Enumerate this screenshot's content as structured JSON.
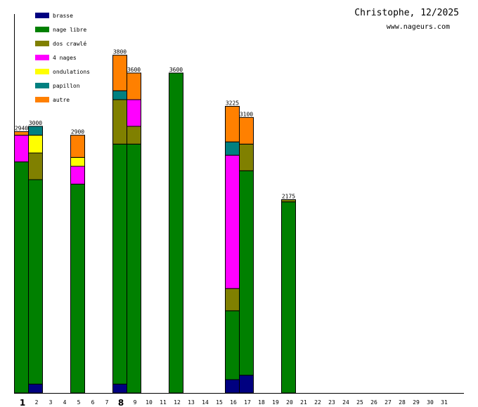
{
  "chart_data": {
    "type": "bar",
    "stacked": true,
    "title": "Christophe, 12/2025",
    "subtitle": "www.nageurs.com",
    "xlabel": "",
    "ylabel": "",
    "ylim": [
      0,
      4000
    ],
    "grid": false,
    "legend_position": "top-left",
    "categories": [
      "1",
      "2",
      "3",
      "4",
      "5",
      "6",
      "7",
      "8",
      "9",
      "10",
      "11",
      "12",
      "13",
      "14",
      "15",
      "16",
      "17",
      "18",
      "19",
      "20",
      "21",
      "22",
      "23",
      "24",
      "25",
      "26",
      "27",
      "28",
      "29",
      "30",
      "31"
    ],
    "bold_categories": [
      "1",
      "8"
    ],
    "series": [
      {
        "name": "brasse",
        "color": "#000080",
        "values": [
          0,
          100,
          0,
          0,
          0,
          0,
          0,
          100,
          0,
          0,
          0,
          0,
          0,
          0,
          0,
          150,
          200,
          0,
          0,
          0,
          0,
          0,
          0,
          0,
          0,
          0,
          0,
          0,
          0,
          0,
          0
        ]
      },
      {
        "name": "nage libre",
        "color": "#008000",
        "values": [
          2600,
          2300,
          0,
          0,
          2350,
          0,
          0,
          2700,
          2800,
          0,
          0,
          3600,
          0,
          0,
          0,
          775,
          2300,
          0,
          0,
          2150,
          0,
          0,
          0,
          0,
          0,
          0,
          0,
          0,
          0,
          0,
          0
        ]
      },
      {
        "name": "dos crawlé",
        "color": "#808000",
        "values": [
          0,
          300,
          0,
          0,
          0,
          0,
          0,
          500,
          200,
          0,
          0,
          0,
          0,
          0,
          0,
          250,
          300,
          0,
          0,
          25,
          0,
          0,
          0,
          0,
          0,
          0,
          0,
          0,
          0,
          0,
          0
        ]
      },
      {
        "name": "4 nages",
        "color": "#ff00ff",
        "values": [
          300,
          0,
          0,
          0,
          200,
          0,
          0,
          0,
          300,
          0,
          0,
          0,
          0,
          0,
          0,
          1500,
          0,
          0,
          0,
          0,
          0,
          0,
          0,
          0,
          0,
          0,
          0,
          0,
          0,
          0,
          0
        ]
      },
      {
        "name": "ondulations",
        "color": "#ffff00",
        "values": [
          0,
          200,
          0,
          0,
          100,
          0,
          0,
          0,
          0,
          0,
          0,
          0,
          0,
          0,
          0,
          0,
          0,
          0,
          0,
          0,
          0,
          0,
          0,
          0,
          0,
          0,
          0,
          0,
          0,
          0,
          0
        ]
      },
      {
        "name": "papillon",
        "color": "#008080",
        "values": [
          0,
          100,
          0,
          0,
          0,
          0,
          0,
          100,
          0,
          0,
          0,
          0,
          0,
          0,
          0,
          150,
          0,
          0,
          0,
          0,
          0,
          0,
          0,
          0,
          0,
          0,
          0,
          0,
          0,
          0,
          0
        ]
      },
      {
        "name": "autre",
        "color": "#ff8000",
        "values": [
          40,
          0,
          0,
          0,
          250,
          0,
          0,
          400,
          300,
          0,
          0,
          0,
          0,
          0,
          0,
          400,
          300,
          0,
          0,
          0,
          0,
          0,
          0,
          0,
          0,
          0,
          0,
          0,
          0,
          0,
          0
        ]
      }
    ],
    "totals": [
      {
        "day": "1",
        "label": "2940"
      },
      {
        "day": "2",
        "label": "3000"
      },
      {
        "day": "5",
        "label": "2900"
      },
      {
        "day": "8",
        "label": "3800"
      },
      {
        "day": "9",
        "label": "3600"
      },
      {
        "day": "12",
        "label": "3600"
      },
      {
        "day": "16",
        "label": "3225"
      },
      {
        "day": "17",
        "label": "3100"
      },
      {
        "day": "20",
        "label": "2175"
      }
    ]
  }
}
